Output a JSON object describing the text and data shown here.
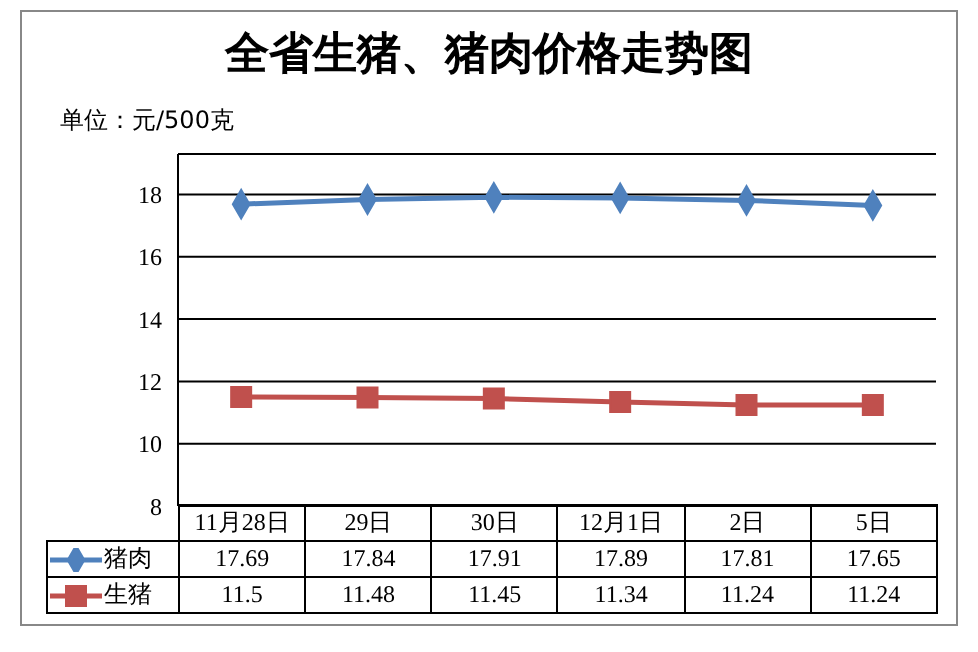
{
  "chart_data": {
    "type": "line",
    "title": "全省生猪、猪肉价格走势图",
    "annotations": [
      "单位：元/500克"
    ],
    "categories": [
      "11月28日",
      "29日",
      "30日",
      "12月1日",
      "2日",
      "5日"
    ],
    "series": [
      {
        "name": "猪肉",
        "color": "#4f81bd",
        "marker": "diamond",
        "values": [
          17.69,
          17.84,
          17.91,
          17.89,
          17.81,
          17.65
        ]
      },
      {
        "name": "生猪",
        "color": "#c0504d",
        "marker": "square",
        "values": [
          11.5,
          11.48,
          11.45,
          11.34,
          11.24,
          11.24
        ]
      }
    ],
    "ylim": [
      8,
      19.3
    ],
    "yticks": [
      8,
      10,
      12,
      14,
      16,
      18
    ],
    "grid": "y",
    "legend": "bottom",
    "data_labels": true
  }
}
